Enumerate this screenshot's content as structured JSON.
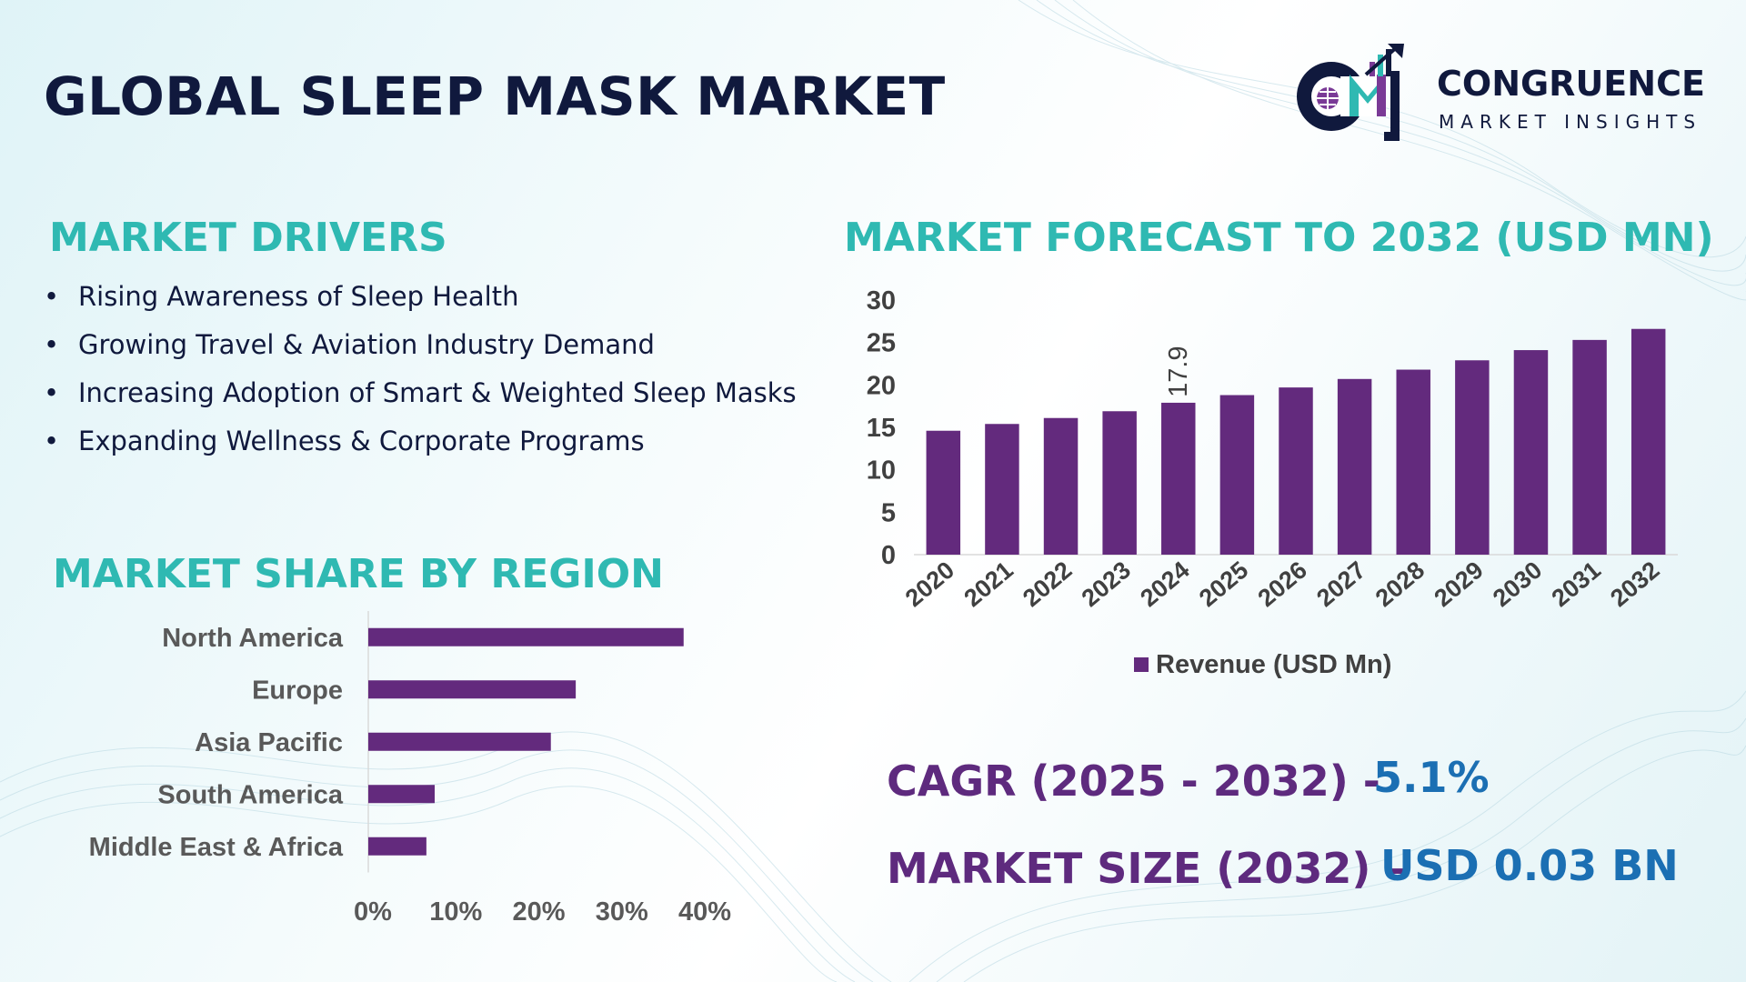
{
  "title": "GLOBAL SLEEP MASK MARKET",
  "logo": {
    "name": "CONGRUENCE",
    "tagline": "MARKET INSIGHTS",
    "mark": "CM"
  },
  "drivers": {
    "title": "MARKET DRIVERS",
    "bullet": "•",
    "items": [
      "Rising Awareness of Sleep Health",
      "Growing Travel & Aviation Industry Demand",
      "Increasing Adoption of Smart & Weighted Sleep Masks",
      "Expanding Wellness & Corporate Programs"
    ]
  },
  "stats": {
    "cagr_label": "CAGR (2025 - 2032) -",
    "cagr_value": "5.1%",
    "size_label": "MARKET SIZE (2032) –",
    "size_value": "USD 0.03 BN"
  },
  "colors": {
    "bar": "#632a7d",
    "accent": "#2fb9b2",
    "title": "#10193d",
    "stat_label": "#5e2a7e",
    "stat_value": "#1b6fb3"
  },
  "chart_data": [
    {
      "type": "bar",
      "title": "MARKET FORECAST TO 2032 (USD MN)",
      "categories": [
        "2020",
        "2021",
        "2022",
        "2023",
        "2024",
        "2025",
        "2026",
        "2027",
        "2028",
        "2029",
        "2030",
        "2031",
        "2032"
      ],
      "series": [
        {
          "name": "Revenue (USD Mn)",
          "values": [
            14.6,
            15.4,
            16.1,
            16.9,
            17.9,
            18.8,
            19.7,
            20.7,
            21.8,
            22.9,
            24.1,
            25.3,
            26.6
          ]
        }
      ],
      "data_labels": [
        {
          "category": "2024",
          "text": "17.9"
        }
      ],
      "yticks": [
        "0",
        "5",
        "10",
        "15",
        "20",
        "25",
        "30"
      ],
      "ylim": [
        0,
        30
      ],
      "legend": "bottom",
      "grid": false
    },
    {
      "type": "bar",
      "orientation": "horizontal",
      "title": "MARKET SHARE BY REGION",
      "categories": [
        "North America",
        "Europe",
        "Asia Pacific",
        "South America",
        "Middle East & Africa"
      ],
      "values": [
        38,
        25,
        22,
        8,
        7
      ],
      "xticks": [
        "0%",
        "10%",
        "20%",
        "30%",
        "40%"
      ],
      "xlim": [
        0,
        40
      ],
      "grid": false
    }
  ]
}
